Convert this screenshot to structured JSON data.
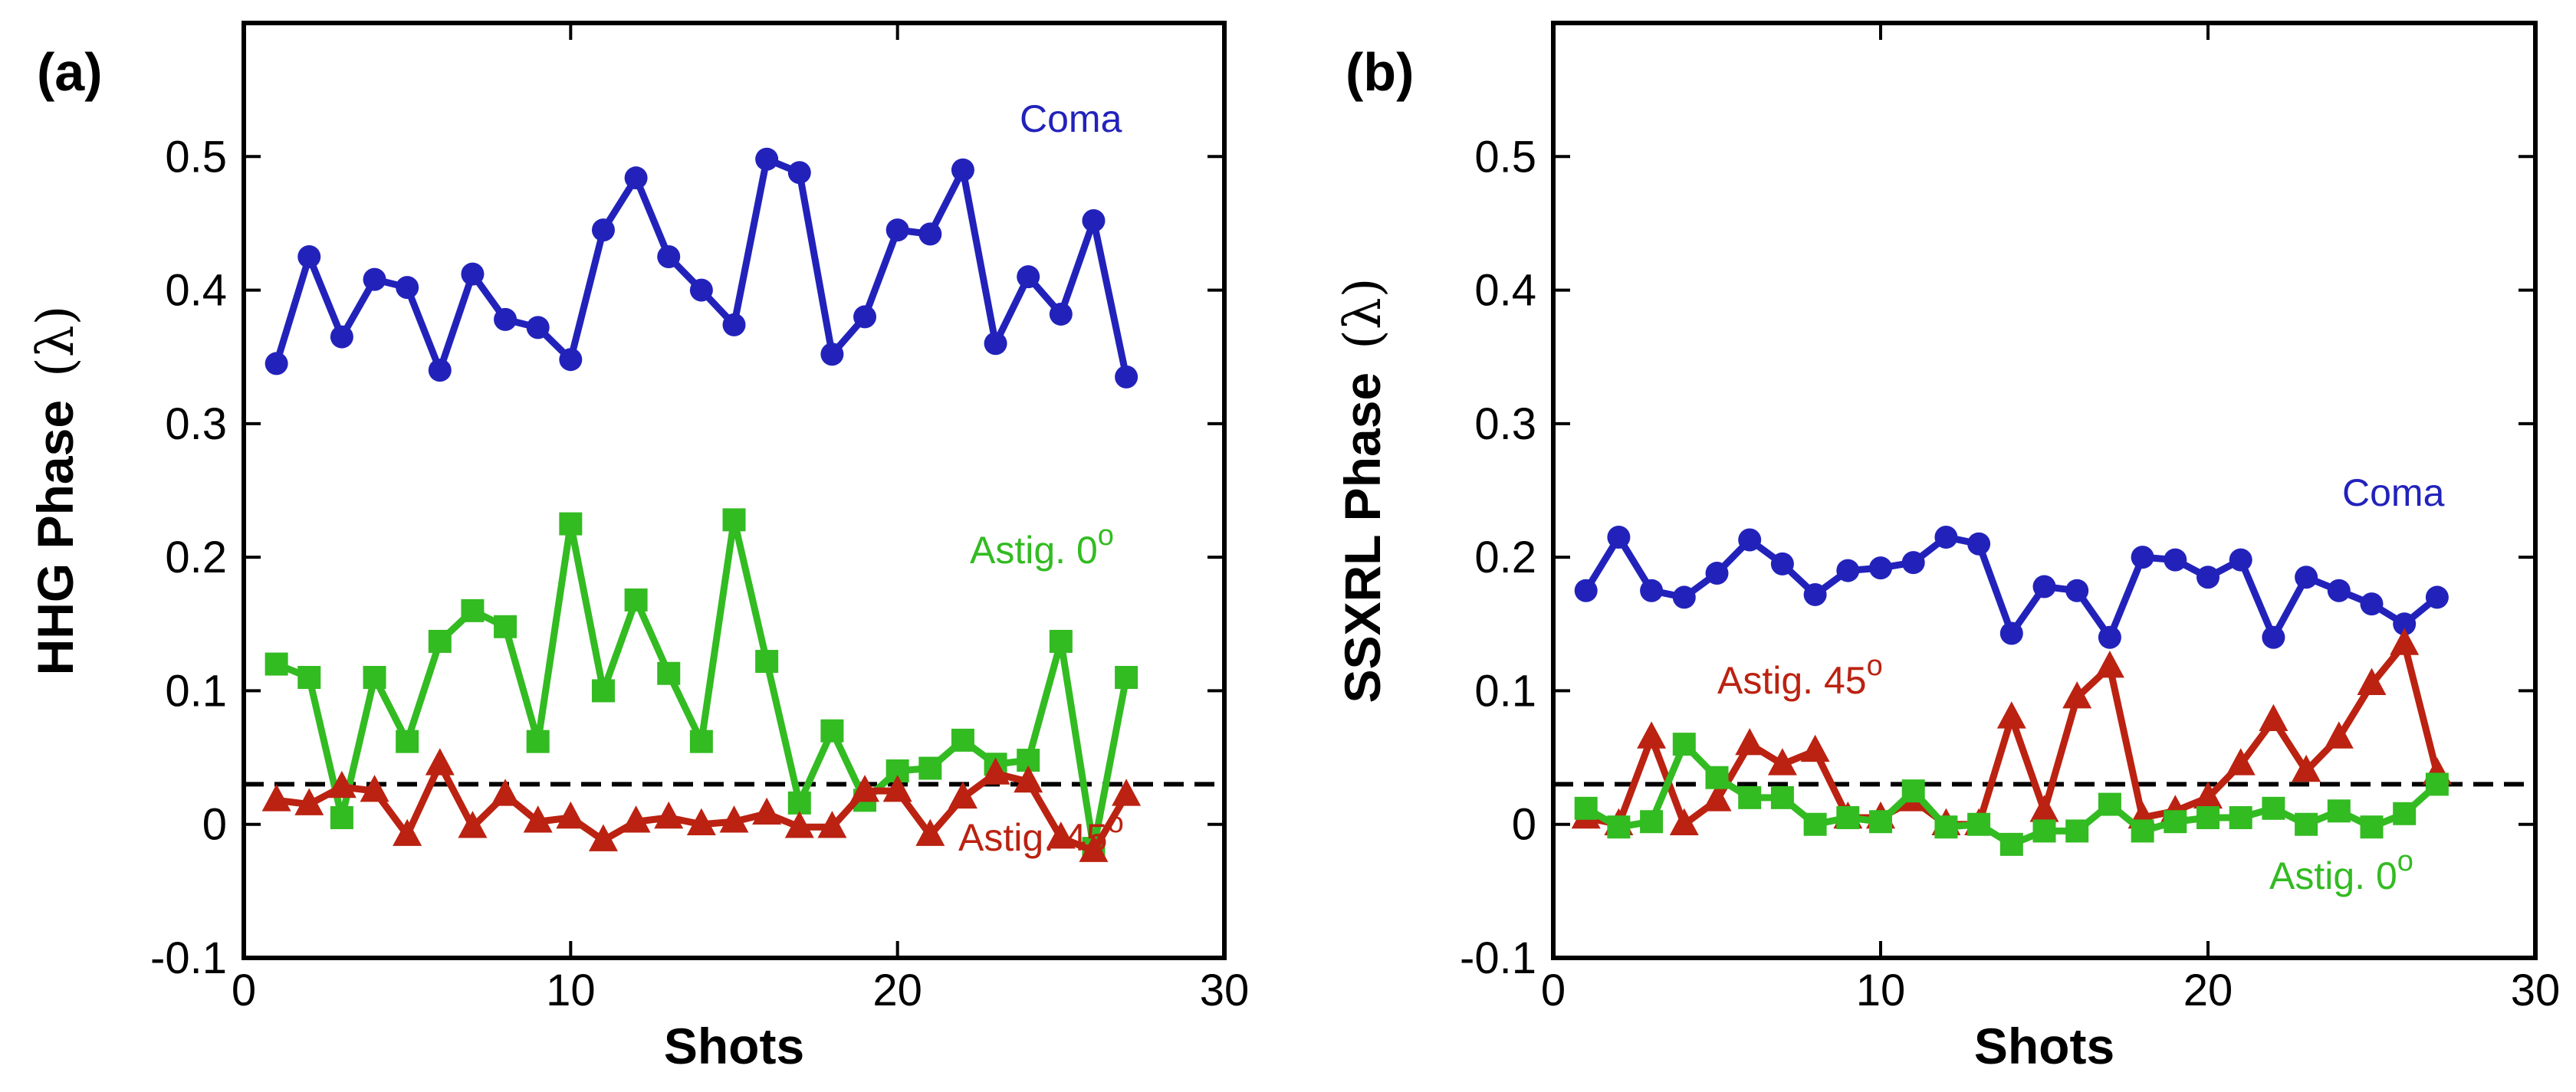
{
  "chart_data": [
    {
      "type": "line",
      "panel_label": "(a)",
      "xlabel": "Shots",
      "ylabel": "HHG Phase",
      "ylabel_unit": "λ",
      "xlim": [
        0,
        30
      ],
      "ylim": [
        -0.1,
        0.6
      ],
      "xticks": [
        "0",
        "10",
        "20",
        "30"
      ],
      "yticks": [
        "-0.1",
        "0",
        "0.1",
        "0.2",
        "0.3",
        "0.4",
        "0.5"
      ],
      "reference_line": {
        "y": 0.03,
        "style": "dashed",
        "color": "#000000"
      },
      "x": [
        1,
        2,
        3,
        4,
        5,
        6,
        7,
        8,
        9,
        10,
        11,
        12,
        13,
        14,
        15,
        16,
        17,
        18,
        19,
        20,
        21,
        22,
        23,
        24,
        25,
        26,
        27
      ],
      "series": [
        {
          "name": "Coma",
          "color": "#2222bb",
          "marker": "circle",
          "values": [
            0.345,
            0.425,
            0.365,
            0.408,
            0.402,
            0.34,
            0.412,
            0.378,
            0.372,
            0.348,
            0.445,
            0.484,
            0.425,
            0.4,
            0.374,
            0.498,
            0.488,
            0.352,
            0.38,
            0.445,
            0.442,
            0.49,
            0.36,
            0.41,
            0.382,
            0.452,
            0.335
          ]
        },
        {
          "name": "Astig. 0",
          "color": "#33bb22",
          "marker": "square",
          "values": [
            0.12,
            0.11,
            0.005,
            0.11,
            0.062,
            0.137,
            0.16,
            0.148,
            0.062,
            0.225,
            0.1,
            0.168,
            0.113,
            0.062,
            0.228,
            0.122,
            0.016,
            0.07,
            0.018,
            0.04,
            0.042,
            0.063,
            0.045,
            0.048,
            0.137,
            -0.018,
            0.11
          ]
        },
        {
          "name": "Astig. 45",
          "color": "#bb2211",
          "marker": "triangle",
          "values": [
            0.018,
            0.015,
            0.028,
            0.025,
            -0.008,
            0.045,
            -0.002,
            0.022,
            0.002,
            0.005,
            -0.012,
            0.002,
            0.005,
            0.0,
            0.002,
            0.008,
            -0.002,
            -0.002,
            0.025,
            0.025,
            -0.008,
            0.02,
            0.038,
            0.032,
            -0.01,
            -0.02,
            0.022
          ]
        }
      ],
      "annotations": [
        {
          "text": "Coma",
          "series": "Coma",
          "sup": "",
          "color": "#2222bb"
        },
        {
          "text": "Astig. 0",
          "series": "Astig. 0",
          "sup": "o",
          "color": "#33bb22"
        },
        {
          "text": "Astig. 45",
          "series": "Astig. 45",
          "sup": "o",
          "color": "#bb2211"
        }
      ]
    },
    {
      "type": "line",
      "panel_label": "(b)",
      "xlabel": "Shots",
      "ylabel": "SSXRL Phase",
      "ylabel_unit": "λ",
      "xlim": [
        0,
        30
      ],
      "ylim": [
        -0.1,
        0.6
      ],
      "xticks": [
        "0",
        "10",
        "20",
        "30"
      ],
      "yticks": [
        "-0.1",
        "0",
        "0.1",
        "0.2",
        "0.3",
        "0.4",
        "0.5"
      ],
      "reference_line": {
        "y": 0.03,
        "style": "dashed",
        "color": "#000000"
      },
      "x": [
        1,
        2,
        3,
        4,
        5,
        6,
        7,
        8,
        9,
        10,
        11,
        12,
        13,
        14,
        15,
        16,
        17,
        18,
        19,
        20,
        21,
        22,
        23,
        24,
        25,
        26,
        27
      ],
      "series": [
        {
          "name": "Coma",
          "color": "#2222bb",
          "marker": "circle",
          "values": [
            0.175,
            0.215,
            0.175,
            0.17,
            0.188,
            0.213,
            0.195,
            0.172,
            0.19,
            0.192,
            0.196,
            0.215,
            0.21,
            0.143,
            0.178,
            0.175,
            0.14,
            0.2,
            0.198,
            0.185,
            0.198,
            0.14,
            0.185,
            0.175,
            0.165,
            0.15,
            0.17
          ]
        },
        {
          "name": "Astig. 45",
          "color": "#bb2211",
          "marker": "triangle",
          "values": [
            0.005,
            0.0,
            0.065,
            0.0,
            0.018,
            0.06,
            0.045,
            0.055,
            0.005,
            0.005,
            0.018,
            0.0,
            0.0,
            0.08,
            0.01,
            0.095,
            0.118,
            0.005,
            0.01,
            0.02,
            0.045,
            0.078,
            0.04,
            0.065,
            0.105,
            0.135,
            0.038
          ]
        },
        {
          "name": "Astig. 0",
          "color": "#33bb22",
          "marker": "square",
          "values": [
            0.012,
            -0.002,
            0.002,
            0.06,
            0.035,
            0.02,
            0.02,
            0.0,
            0.005,
            0.002,
            0.025,
            -0.002,
            0.0,
            -0.015,
            -0.005,
            -0.005,
            0.015,
            -0.005,
            0.002,
            0.005,
            0.005,
            0.012,
            0.0,
            0.01,
            -0.002,
            0.008,
            0.03
          ]
        }
      ],
      "annotations": [
        {
          "text": "Coma",
          "series": "Coma",
          "sup": "",
          "color": "#2222bb"
        },
        {
          "text": "Astig. 45",
          "series": "Astig. 45",
          "sup": "o",
          "color": "#bb2211"
        },
        {
          "text": "Astig. 0",
          "series": "Astig. 0",
          "sup": "o",
          "color": "#33bb22"
        }
      ]
    }
  ]
}
